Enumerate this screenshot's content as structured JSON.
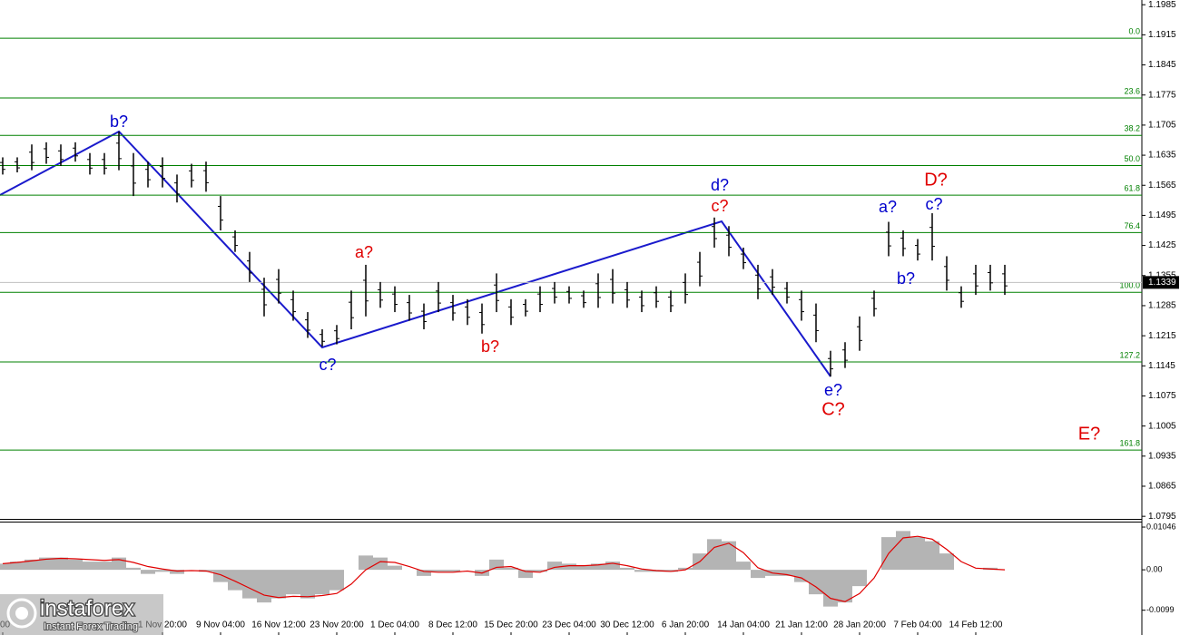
{
  "chart_data": [
    {
      "type": "ohlc",
      "color": "#000000",
      "ylim": [
        1.0789,
        1.1996
      ],
      "yticks": [
        1.1985,
        1.1915,
        1.1845,
        1.1775,
        1.1705,
        1.1635,
        1.1565,
        1.1495,
        1.1425,
        1.1355,
        1.1285,
        1.1215,
        1.1145,
        1.1075,
        1.1005,
        1.0935,
        1.0865,
        1.0795
      ],
      "categories": [
        "00",
        null,
        null,
        null,
        null,
        null,
        null,
        null,
        null,
        null,
        null,
        "1 Nov 20:00",
        null,
        null,
        null,
        "9 Nov 04:00",
        null,
        null,
        null,
        "16 Nov 12:00",
        null,
        null,
        null,
        "23 Nov 20:00",
        null,
        null,
        null,
        "1 Dec 04:00",
        null,
        null,
        null,
        "8 Dec 12:00",
        null,
        null,
        null,
        "15 Dec 20:00",
        null,
        null,
        null,
        "23 Dec 04:00",
        null,
        null,
        null,
        "30 Dec 12:00",
        null,
        null,
        null,
        "6 Jan 20:00",
        null,
        null,
        null,
        "14 Jan 04:00",
        null,
        null,
        null,
        "21 Jan 12:00",
        null,
        null,
        null,
        "28 Jan 20:00",
        null,
        null,
        null,
        "7 Feb 04:00",
        null,
        null,
        null,
        "14 Feb 12:00",
        null,
        null
      ],
      "high": [
        1.163,
        1.163,
        1.166,
        1.1665,
        1.166,
        1.1665,
        1.164,
        1.164,
        1.169,
        1.164,
        1.162,
        1.163,
        1.159,
        1.1615,
        1.162,
        1.154,
        1.146,
        1.141,
        1.135,
        1.137,
        1.132,
        1.127,
        1.123,
        1.124,
        1.132,
        1.138,
        1.134,
        1.133,
        1.131,
        1.129,
        1.134,
        1.131,
        1.13,
        1.129,
        1.136,
        1.13,
        1.13,
        1.133,
        1.134,
        1.133,
        1.132,
        1.136,
        1.137,
        1.134,
        1.132,
        1.133,
        1.132,
        1.136,
        1.141,
        1.149,
        1.147,
        1.142,
        1.138,
        1.137,
        1.134,
        1.132,
        1.129,
        1.118,
        1.12,
        1.126,
        1.132,
        1.148,
        1.146,
        1.144,
        1.15,
        1.14,
        1.133,
        1.138,
        1.138,
        1.138
      ],
      "low": [
        1.159,
        1.1595,
        1.16,
        1.1615,
        1.161,
        1.162,
        1.159,
        1.159,
        1.16,
        1.154,
        1.156,
        1.156,
        1.1525,
        1.156,
        1.155,
        1.146,
        1.141,
        1.134,
        1.126,
        1.129,
        1.125,
        1.121,
        1.119,
        1.1195,
        1.123,
        1.126,
        1.128,
        1.127,
        1.125,
        1.123,
        1.127,
        1.125,
        1.124,
        1.122,
        1.127,
        1.124,
        1.126,
        1.127,
        1.129,
        1.129,
        1.128,
        1.128,
        1.129,
        1.128,
        1.127,
        1.128,
        1.127,
        1.129,
        1.133,
        1.142,
        1.14,
        1.137,
        1.13,
        1.131,
        1.129,
        1.125,
        1.12,
        1.112,
        1.114,
        1.118,
        1.126,
        1.14,
        1.14,
        1.139,
        1.139,
        1.132,
        1.128,
        1.131,
        1.132,
        1.131
      ],
      "fib_color": "#008000",
      "fib_levels": [
        {
          "price": 1.1907,
          "label": "0.0"
        },
        {
          "price": 1.1768,
          "label": "23.6"
        },
        {
          "price": 1.1681,
          "label": "38.2"
        },
        {
          "price": 1.1611,
          "label": "50.0"
        },
        {
          "price": 1.1542,
          "label": "61.8"
        },
        {
          "price": 1.1455,
          "label": "76.4"
        },
        {
          "price": 1.1316,
          "label": "100.0"
        },
        {
          "price": 1.1154,
          "label": "127.2"
        },
        {
          "price": 1.0949,
          "label": "161.8"
        }
      ],
      "current_price": 1.1339,
      "annotations": [
        {
          "text": "b?",
          "color": "#0000cc"
        },
        {
          "text": "c?",
          "color": "#0000cc"
        },
        {
          "text": "a?",
          "color": "#e00000"
        },
        {
          "text": "b?",
          "color": "#e00000"
        },
        {
          "text": "d?",
          "color": "#0000cc"
        },
        {
          "text": "c?",
          "color": "#e00000"
        },
        {
          "text": "e?",
          "color": "#0000cc"
        },
        {
          "text": "C?",
          "color": "#e00000"
        },
        {
          "text": "a?",
          "color": "#0000cc"
        },
        {
          "text": "b?",
          "color": "#0000cc"
        },
        {
          "text": "c?",
          "color": "#0000cc"
        },
        {
          "text": "D?",
          "color": "#e00000"
        },
        {
          "text": "E?",
          "color": "#e00000"
        }
      ]
    },
    {
      "type": "macd",
      "ylim": [
        -0.0153,
        0.0118
      ],
      "yticks": [
        0.01046,
        {
          "value": 0,
          "label": "0.00"
        },
        -0.0099
      ],
      "histogram_color": "#b4b4b4",
      "signal_color": "#e00000",
      "histogram": [
        0.0015,
        0.002,
        0.0025,
        0.003,
        0.003,
        0.0025,
        0.002,
        0.002,
        0.003,
        0.0005,
        -0.001,
        -0.0005,
        -0.001,
        0,
        -0.0005,
        -0.003,
        -0.005,
        -0.007,
        -0.008,
        -0.007,
        -0.006,
        -0.007,
        -0.006,
        -0.005,
        0,
        0.0035,
        0.003,
        0.001,
        0,
        -0.0015,
        -0.0005,
        -0.0005,
        0,
        -0.0015,
        0.0025,
        0.0005,
        -0.002,
        -0.0005,
        0.002,
        0.0015,
        0.001,
        0.0015,
        0.002,
        0.0005,
        -0.0005,
        -0.0005,
        -0.0005,
        0.0005,
        0.004,
        0.0075,
        0.007,
        0.002,
        -0.002,
        -0.0015,
        -0.0015,
        -0.003,
        -0.006,
        -0.009,
        -0.008,
        -0.004,
        0,
        0.008,
        0.0095,
        0.008,
        0.007,
        0.004,
        0,
        0,
        0.0005,
        0
      ],
      "signal": [
        0.0015,
        0.0018,
        0.0022,
        0.0026,
        0.0028,
        0.0027,
        0.0025,
        0.0023,
        0.0025,
        0.0018,
        0.0008,
        0.0002,
        -0.0003,
        -0.0002,
        -0.0003,
        -0.0012,
        -0.0028,
        -0.0045,
        -0.0062,
        -0.0068,
        -0.0065,
        -0.0066,
        -0.0063,
        -0.0058,
        -0.0035,
        0,
        0.002,
        0.0018,
        0.0008,
        -0.0004,
        -0.0006,
        -0.0006,
        -0.0003,
        -0.0008,
        0.0006,
        0.0008,
        -0.0004,
        -0.0006,
        0.0006,
        0.001,
        0.001,
        0.0012,
        0.0016,
        0.001,
        0.0002,
        -0.0002,
        -0.0004,
        0,
        0.002,
        0.0055,
        0.0065,
        0.0042,
        0.0005,
        -0.0008,
        -0.0012,
        -0.002,
        -0.0042,
        -0.007,
        -0.0078,
        -0.0058,
        -0.002,
        0.004,
        0.0078,
        0.0082,
        0.0075,
        0.005,
        0.002,
        0.0004,
        0.0002,
        0
      ]
    }
  ],
  "watermark": {
    "brand": "instaforex",
    "tagline": "Instant Forex Trading"
  }
}
